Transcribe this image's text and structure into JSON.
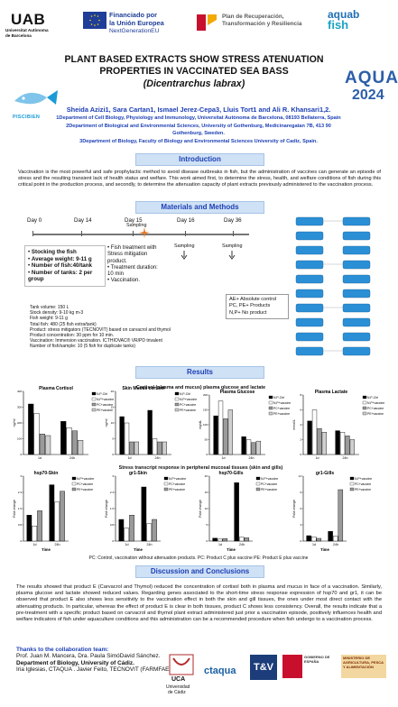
{
  "logos": {
    "uab_mark": "UAB",
    "uab_sub_1": "Universitat Autònoma",
    "uab_sub_2": "de Barcelona",
    "eu_1": "Financiado por",
    "eu_2": "la Unión Europea",
    "eu_3": "NextGenerationEU",
    "prtr_1": "Plan de Recuperación,",
    "prtr_2": "Transformación y Resiliencia",
    "aquab_1": "aquab",
    "aquab_2": "fish",
    "pisci": "PISCIBIEN",
    "aqua": "AQUA",
    "aqua_year": "2024"
  },
  "title": {
    "line1": "PLANT BASED EXTRACTS SHOW STRESS ATENUATION",
    "line2": "PROPERTIES IN VACCINATED SEA BASS",
    "line3": "(Dicentrarchus labrax)"
  },
  "authors": "Sheida Azizi1, Sara Cartan1, Ismael Jerez-Cepa3, Lluis Tort1 and Ali R. Khansari1,2.",
  "affiliations": {
    "a1": "1Department of Cell Biology, Physiology and Immunology, Universitat Autònoma de Barcelona, 08193 Bellaterra, Spain",
    "a2": "2Department of Biological and Environmental Sciences, University of Gothenburg, Medicinaregatan 7B, 413 90",
    "a2b": "Gothenburg, Sweden.",
    "a3": "3Department of Biology, Faculty of Biology and Environmental Sciences University of Cadiz, Spain."
  },
  "sections": {
    "intro": "Introduction",
    "methods": "Materials and Methods",
    "results": "Results",
    "discussion": "Discussion and Conclusions"
  },
  "intro_text": "Vaccination is the most powerful and safe prophylactic method to avoid disease outbreaks in fish, but the administration of vaccines can generate an episode of stress and the resulting transient lack of health status and welfare. This work aimed first, to determine the stress, health, and welfare conditions of fish during this critical point in the production process, and secondly, to determine the attenuation capacity of plant extracts previously administered to the vaccination process.",
  "timeline": {
    "day0": "Day 0",
    "day14": "Day 14",
    "day15": "Day 15",
    "day16": "Day 16",
    "day36": "Day 36",
    "sampling": "Sampling"
  },
  "stock_box": {
    "b1": "Stocking the fish",
    "b2": "Average weight: 9-11 g",
    "b3": "Number of fish:40/tank",
    "b4": "Number of tanks: 2 per group"
  },
  "treat_box": {
    "t1": "Fish treatment with Stress mitigation product.",
    "t2": "Treatment duration: 10 min",
    "t3": "Vaccination."
  },
  "legend_box": {
    "l1": "AE+ Absolute control",
    "l2": "PC, PE+ Products",
    "l3": "N,P+ No product"
  },
  "details": [
    "Tank volume: 150 L",
    "Stock density: 9-10 kg m-3",
    "Fish weight: 9-11 g",
    "Total fish: 480 (25 fish extra/tank)",
    "Product: stress mitigators (TECNOVIT) based on carvacrol and thymol",
    "Product concentration: 30 ppm for 10 min.",
    "Vaccination: Immersion vaccination. ICTHIOVAC® VR/PD trivalent",
    "Number of fish/sample: 10 (5 fish for duplicate tanks)"
  ],
  "results": {
    "sub1": "Cortisol (plasma and mucus) plasma glucose and lactate",
    "sub2": "Stress transcript response in peripheral mucosal tissues (skin and gills)",
    "caption": "PC: Control, vaccination without attenuation products. PC: Product C plus vaccine PE: Product E plus vaccine"
  },
  "chart_data": [
    {
      "type": "bar",
      "title": "Plasma Cortisol",
      "ylabel": "ng/ml",
      "categories": [
        "1d",
        "24h"
      ],
      "series": [
        {
          "name": "N,P-Ctrl",
          "values": [
            320,
            210
          ]
        },
        {
          "name": "N,P+vaccine",
          "values": [
            260,
            170
          ]
        },
        {
          "name": "PC+vaccine",
          "values": [
            130,
            150
          ]
        },
        {
          "name": "PE+vaccine",
          "values": [
            120,
            90
          ]
        }
      ],
      "ylim": [
        0,
        400
      ]
    },
    {
      "type": "bar",
      "title": "Skin Mucus cortisol",
      "ylabel": "ng/ml",
      "categories": [
        "1d",
        "24h"
      ],
      "series": [
        {
          "name": "N,P-Ctrl",
          "values": [
            12,
            14
          ]
        },
        {
          "name": "N,P+vaccine",
          "values": [
            10,
            5
          ]
        },
        {
          "name": "PC+vaccine",
          "values": [
            4,
            4
          ]
        },
        {
          "name": "PE+vaccine",
          "values": [
            4,
            4
          ]
        }
      ],
      "ylim": [
        0,
        20
      ]
    },
    {
      "type": "bar",
      "title": "Plasma Glucose",
      "ylabel": "mg/dL",
      "categories": [
        "1d",
        "24h"
      ],
      "series": [
        {
          "name": "N,P-Ctrl",
          "values": [
            130,
            60
          ]
        },
        {
          "name": "N,P+vaccine",
          "values": [
            180,
            50
          ]
        },
        {
          "name": "PC+vaccine",
          "values": [
            120,
            40
          ]
        },
        {
          "name": "PE+vaccine",
          "values": [
            150,
            45
          ]
        }
      ],
      "ylim": [
        0,
        200
      ]
    },
    {
      "type": "bar",
      "title": "Plasma Lactate",
      "ylabel": "mmol/L",
      "categories": [
        "1d",
        "24h"
      ],
      "series": [
        {
          "name": "N,P-Ctrl",
          "values": [
            4.5,
            3.2
          ]
        },
        {
          "name": "N,P+vaccine",
          "values": [
            6.0,
            3.0
          ]
        },
        {
          "name": "PC+vaccine",
          "values": [
            3.5,
            2.5
          ]
        },
        {
          "name": "PE+vaccine",
          "values": [
            3.0,
            2.0
          ]
        }
      ],
      "ylim": [
        0,
        8
      ]
    },
    {
      "type": "bar",
      "title": "hsp70-Skin",
      "ylabel": "Fold change",
      "xlabel": "Time",
      "categories": [
        "1d",
        "24h"
      ],
      "series": [
        {
          "name": "N,P+vaccine",
          "values": [
            1.2,
            2.6
          ]
        },
        {
          "name": "PC+vaccine",
          "values": [
            0.7,
            1.8
          ]
        },
        {
          "name": "PE+vaccine",
          "values": [
            1.4,
            2.3
          ]
        }
      ],
      "ylim": [
        0,
        3
      ]
    },
    {
      "type": "bar",
      "title": "gr1-Skin",
      "ylabel": "Fold change",
      "xlabel": "Time",
      "categories": [
        "1d",
        "24h"
      ],
      "series": [
        {
          "name": "N,P+vaccine",
          "values": [
            1.0,
            2.5
          ]
        },
        {
          "name": "PC+vaccine",
          "values": [
            0.6,
            0.8
          ]
        },
        {
          "name": "PE+vaccine",
          "values": [
            1.2,
            1.0
          ]
        }
      ],
      "ylim": [
        0,
        3
      ]
    },
    {
      "type": "bar",
      "title": "hsp70-Gills",
      "ylabel": "Fold change",
      "xlabel": "Time",
      "categories": [
        "1d",
        "24h"
      ],
      "series": [
        {
          "name": "N,P+vaccine",
          "values": [
            0.9,
            18
          ]
        },
        {
          "name": "PC+vaccine",
          "values": [
            0.6,
            1.2
          ]
        },
        {
          "name": "PE+vaccine",
          "values": [
            0.8,
            1.0
          ]
        }
      ],
      "ylim": [
        0,
        20
      ]
    },
    {
      "type": "bar",
      "title": "gr1-Gills",
      "ylabel": "Fold change",
      "xlabel": "Time",
      "categories": [
        "1d",
        "24h"
      ],
      "series": [
        {
          "name": "N,P+vaccine",
          "values": [
            1.0,
            1.8
          ]
        },
        {
          "name": "PC+vaccine",
          "values": [
            0.8,
            0.9
          ]
        },
        {
          "name": "PE+vaccine",
          "values": [
            0.5,
            9.5
          ]
        }
      ],
      "ylim": [
        0,
        12
      ]
    }
  ],
  "discussion_text": "The results showed that product E (Carvacrol and Thymol) reduced the concentration of cortisol both in plasma and mucus in face of a vaccination. Similarly, plasma glucose and lactate showed reduced values. Regarding genes associated to the short-time stress response expression of hsp70 and gr1, it can be observed that product E also shows less sensitivity to the vaccination effect in both the skin and gill tissues, the ones under most direct contact with the attenuating products. In particular, whereas the effect of product E is clear in both tissues, product C shows less consistency. Overall, the results indicate that a pre-treatment with a specific product based on carvacrol and thymol plant extract administered just prior a vaccination episode, positively influences health and welfare indicators of fish under aquaculture conditions and this administration can be a recommended procedure when fish undergo to a vaccination process.",
  "thanks": {
    "hd": "Thanks to the collaboration team:",
    "l1": "Prof. Juan M. Mancera, Dra. Paula SimóDavid Sánchez.",
    "l2": "Department of Biology, University of Cádiz.",
    "l3": "Iria Iglesias, CTAQUA . Javier Feito, TECNOVIT (FARMFAES)"
  },
  "footer": {
    "uca_1": "UCA",
    "uca_2": "Universidad",
    "uca_3": "de Cádiz",
    "ctaqua": "ctaqua",
    "tv": "T&V",
    "gob": "GOBIERNO DE ESPAÑA",
    "mapa": "MINISTERIO DE AGRICULTURA, PESCA Y ALIMENTACIÓN"
  },
  "colors": {
    "accent": "#1c3fb5",
    "header_bg": "#cfe1f5",
    "bar_dark": "#000000",
    "bar_white": "#ffffff",
    "bar_grey": "#9a9a9a"
  }
}
